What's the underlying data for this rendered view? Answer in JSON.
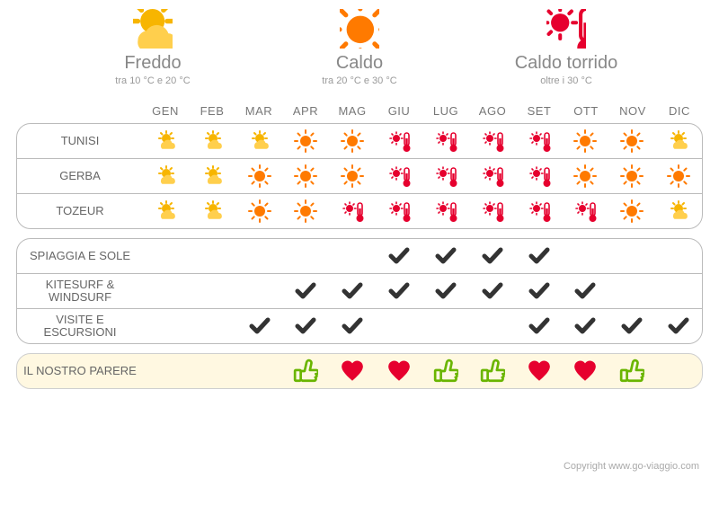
{
  "legend": [
    {
      "icon": "cold",
      "title": "Freddo",
      "sub": "tra 10 °C e 20 °C"
    },
    {
      "icon": "hot",
      "title": "Caldo",
      "sub": "tra 20 °C e 30 °C"
    },
    {
      "icon": "torrid",
      "title": "Caldo torrido",
      "sub": "oltre i 30 °C"
    }
  ],
  "months": [
    "GEN",
    "FEB",
    "MAR",
    "APR",
    "MAG",
    "GIU",
    "LUG",
    "AGO",
    "SET",
    "OTT",
    "NOV",
    "DIC"
  ],
  "weather_block": {
    "rows": [
      {
        "label": "TUNISI",
        "cells": [
          "cold",
          "cold",
          "cold",
          "hot",
          "hot",
          "torrid",
          "torrid",
          "torrid",
          "torrid",
          "hot",
          "hot",
          "cold"
        ]
      },
      {
        "label": "GERBA",
        "cells": [
          "cold",
          "cold",
          "hot",
          "hot",
          "hot",
          "torrid",
          "torrid",
          "torrid",
          "torrid",
          "hot",
          "hot",
          "hot"
        ]
      },
      {
        "label": "TOZEUR",
        "cells": [
          "cold",
          "cold",
          "hot",
          "hot",
          "torrid",
          "torrid",
          "torrid",
          "torrid",
          "torrid",
          "torrid",
          "hot",
          "cold"
        ]
      }
    ]
  },
  "activities_block": {
    "rows": [
      {
        "label": "SPIAGGIA E SOLE",
        "cells": [
          "",
          "",
          "",
          "",
          "",
          "check",
          "check",
          "check",
          "check",
          "",
          "",
          ""
        ]
      },
      {
        "label": "KITESURF & WINDSURF",
        "cells": [
          "",
          "",
          "",
          "check",
          "check",
          "check",
          "check",
          "check",
          "check",
          "check",
          "",
          ""
        ]
      },
      {
        "label": "VISITE E ESCURSIONI",
        "cells": [
          "",
          "",
          "check",
          "check",
          "check",
          "",
          "",
          "",
          "check",
          "check",
          "check",
          "check"
        ]
      }
    ]
  },
  "opinion_block": {
    "rows": [
      {
        "label": "IL NOSTRO PARERE",
        "cells": [
          "",
          "",
          "",
          "thumb",
          "heart",
          "heart",
          "thumb",
          "thumb",
          "heart",
          "heart",
          "thumb",
          ""
        ]
      }
    ]
  },
  "colors": {
    "cold_sun": "#f7b500",
    "cold_cloud": "#ffcf4d",
    "hot_sun": "#ff7a00",
    "torrid": "#e6002e",
    "check": "#333333",
    "heart": "#e6002e",
    "thumb_stroke": "#6ab500",
    "border": "#bbbbbb",
    "opinion_bg": "#fff8e1",
    "text_muted": "#888888"
  },
  "copyright": "Copyright www.go-viaggio.com"
}
